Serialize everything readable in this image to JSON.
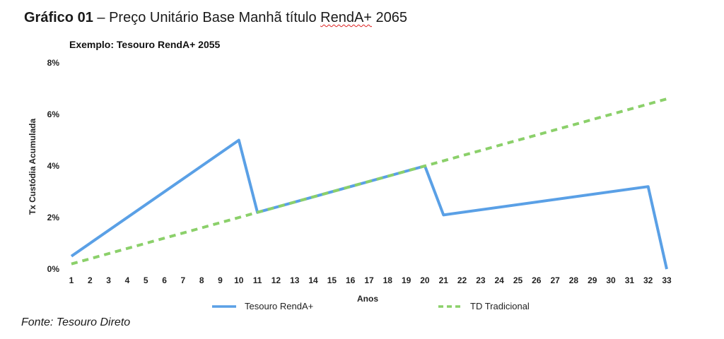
{
  "heading": {
    "prefix": "Gráfico 01",
    "dash": " – ",
    "text_before": "Preço Unitário Base Manhã título ",
    "underlined": "RendA+",
    "text_after": " 2065"
  },
  "source": "Fonte: Tesouro Direto",
  "colors": {
    "rendaplus": "#5aa0e6",
    "tradicional": "#8bd06a"
  },
  "chart_data": {
    "type": "line",
    "title": "Exemplo: Tesouro RendA+ 2055",
    "xlabel": "Anos",
    "ylabel": "Tx Custódia Acumulada",
    "x": [
      1,
      2,
      3,
      4,
      5,
      6,
      7,
      8,
      9,
      10,
      11,
      12,
      13,
      14,
      15,
      16,
      17,
      18,
      19,
      20,
      21,
      22,
      23,
      24,
      25,
      26,
      27,
      28,
      29,
      30,
      31,
      32,
      33
    ],
    "ylim": [
      0,
      8
    ],
    "yticks": [
      "0%",
      "2%",
      "4%",
      "6%",
      "8%"
    ],
    "grid": false,
    "legend_position": "bottom",
    "series": [
      {
        "name": "Tesouro RendA+",
        "style": "solid",
        "points": [
          [
            1,
            0.5
          ],
          [
            10,
            5.0
          ],
          [
            11,
            2.2
          ],
          [
            20,
            4.0
          ],
          [
            21,
            2.1
          ],
          [
            32,
            3.2
          ],
          [
            33,
            0
          ]
        ]
      },
      {
        "name": "TD Tradicional",
        "style": "dashed",
        "points": [
          [
            1,
            0.2
          ],
          [
            33,
            6.6
          ]
        ]
      }
    ]
  }
}
